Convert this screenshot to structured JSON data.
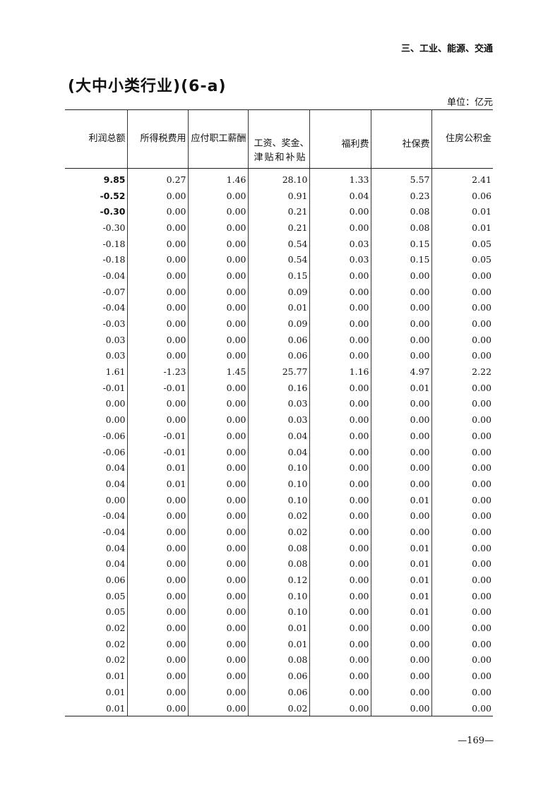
{
  "section_header": "三、工业、能源、交通",
  "title": "(大中小类行业)(6-a)",
  "unit": "单位：亿元",
  "columns": [
    "利润总额",
    "所得税费用",
    "应付职工薪酬",
    "工资、奖金、津贴和补贴",
    "福利费",
    "社保费",
    "住房公积金"
  ],
  "column_lines": {
    "wages_line1": "工资、奖金、",
    "wages_line2": "津贴和补贴"
  },
  "rows": [
    [
      "9.85",
      "0.27",
      "1.46",
      "28.10",
      "1.33",
      "5.57",
      "2.41"
    ],
    [
      "-0.52",
      "0.00",
      "0.00",
      "0.91",
      "0.04",
      "0.23",
      "0.06"
    ],
    [
      "-0.30",
      "0.00",
      "0.00",
      "0.21",
      "0.00",
      "0.08",
      "0.01"
    ],
    [
      "-0.30",
      "0.00",
      "0.00",
      "0.21",
      "0.00",
      "0.08",
      "0.01"
    ],
    [
      "-0.18",
      "0.00",
      "0.00",
      "0.54",
      "0.03",
      "0.15",
      "0.05"
    ],
    [
      "-0.18",
      "0.00",
      "0.00",
      "0.54",
      "0.03",
      "0.15",
      "0.05"
    ],
    [
      "-0.04",
      "0.00",
      "0.00",
      "0.15",
      "0.00",
      "0.00",
      "0.00"
    ],
    [
      "-0.07",
      "0.00",
      "0.00",
      "0.09",
      "0.00",
      "0.00",
      "0.00"
    ],
    [
      "-0.04",
      "0.00",
      "0.00",
      "0.01",
      "0.00",
      "0.00",
      "0.00"
    ],
    [
      "-0.03",
      "0.00",
      "0.00",
      "0.09",
      "0.00",
      "0.00",
      "0.00"
    ],
    [
      "0.03",
      "0.00",
      "0.00",
      "0.06",
      "0.00",
      "0.00",
      "0.00"
    ],
    [
      "0.03",
      "0.00",
      "0.00",
      "0.06",
      "0.00",
      "0.00",
      "0.00"
    ],
    [
      "1.61",
      "-1.23",
      "1.45",
      "25.77",
      "1.16",
      "4.97",
      "2.22"
    ],
    [
      "-0.01",
      "-0.01",
      "0.00",
      "0.16",
      "0.00",
      "0.01",
      "0.00"
    ],
    [
      "0.00",
      "0.00",
      "0.00",
      "0.03",
      "0.00",
      "0.00",
      "0.00"
    ],
    [
      "0.00",
      "0.00",
      "0.00",
      "0.03",
      "0.00",
      "0.00",
      "0.00"
    ],
    [
      "-0.06",
      "-0.01",
      "0.00",
      "0.04",
      "0.00",
      "0.00",
      "0.00"
    ],
    [
      "-0.06",
      "-0.01",
      "0.00",
      "0.04",
      "0.00",
      "0.00",
      "0.00"
    ],
    [
      "0.04",
      "0.01",
      "0.00",
      "0.10",
      "0.00",
      "0.00",
      "0.00"
    ],
    [
      "0.04",
      "0.01",
      "0.00",
      "0.10",
      "0.00",
      "0.00",
      "0.00"
    ],
    [
      "0.00",
      "0.00",
      "0.00",
      "0.10",
      "0.00",
      "0.01",
      "0.00"
    ],
    [
      "-0.04",
      "0.00",
      "0.00",
      "0.02",
      "0.00",
      "0.00",
      "0.00"
    ],
    [
      "-0.04",
      "0.00",
      "0.00",
      "0.02",
      "0.00",
      "0.00",
      "0.00"
    ],
    [
      "0.04",
      "0.00",
      "0.00",
      "0.08",
      "0.00",
      "0.01",
      "0.00"
    ],
    [
      "0.04",
      "0.00",
      "0.00",
      "0.08",
      "0.00",
      "0.01",
      "0.00"
    ],
    [
      "0.06",
      "0.00",
      "0.00",
      "0.12",
      "0.00",
      "0.01",
      "0.00"
    ],
    [
      "0.05",
      "0.00",
      "0.00",
      "0.10",
      "0.00",
      "0.01",
      "0.00"
    ],
    [
      "0.05",
      "0.00",
      "0.00",
      "0.10",
      "0.00",
      "0.01",
      "0.00"
    ],
    [
      "0.02",
      "0.00",
      "0.00",
      "0.01",
      "0.00",
      "0.00",
      "0.00"
    ],
    [
      "0.02",
      "0.00",
      "0.00",
      "0.01",
      "0.00",
      "0.00",
      "0.00"
    ],
    [
      "0.02",
      "0.00",
      "0.00",
      "0.08",
      "0.00",
      "0.00",
      "0.00"
    ],
    [
      "0.01",
      "0.00",
      "0.00",
      "0.06",
      "0.00",
      "0.00",
      "0.00"
    ],
    [
      "0.01",
      "0.00",
      "0.00",
      "0.06",
      "0.00",
      "0.00",
      "0.00"
    ],
    [
      "0.01",
      "0.00",
      "0.00",
      "0.02",
      "0.00",
      "0.00",
      "0.00"
    ]
  ],
  "page_number": "—169—"
}
